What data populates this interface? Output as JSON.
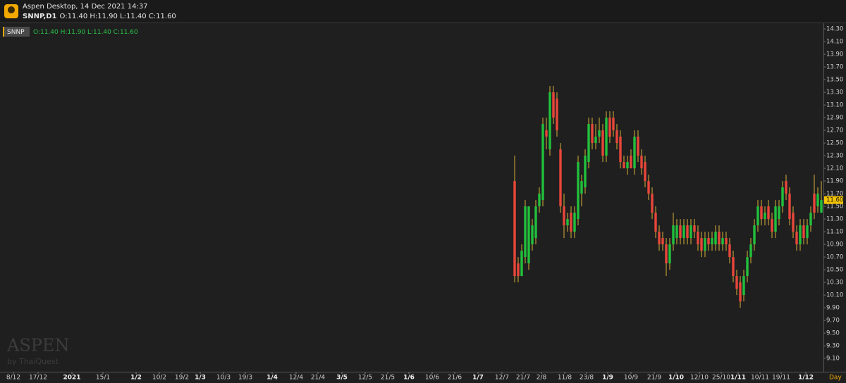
{
  "header": {
    "title": "Aspen Desktop, 14 Dec 2021 14:37",
    "symbol": "SNNP,D1",
    "ohlc": "O:11.40 H:11.90 L:11.40 C:11.60"
  },
  "legend": {
    "symbol": "SNNP",
    "ohlc": "O:11.40 H:11.90 L:11.40 C:11.60"
  },
  "watermark": {
    "brand": "ASPEN",
    "sub": "by ThaiQuest"
  },
  "chart_data": {
    "type": "candlestick",
    "period": "Day",
    "up_color": "#22c03c",
    "down_color": "#e8473a",
    "wick_color": "#d9b23a",
    "last_price": {
      "value": 11.6,
      "label": "11.60"
    },
    "xlim": [
      0,
      233.6
    ],
    "ylim": [
      8.89,
      14.39
    ],
    "xticks": [
      {
        "value": 3.8,
        "label": "8/12"
      },
      {
        "value": 10.8,
        "label": "17/12"
      },
      {
        "value": 20.4,
        "label": "2021"
      },
      {
        "value": 29.2,
        "label": "15/1"
      },
      {
        "value": 38.6,
        "label": "1/2"
      },
      {
        "value": 45.2,
        "label": "10/2"
      },
      {
        "value": 51.6,
        "label": "19/2"
      },
      {
        "value": 56.8,
        "label": "1/3"
      },
      {
        "value": 63.4,
        "label": "10/3"
      },
      {
        "value": 69.6,
        "label": "19/3"
      },
      {
        "value": 77.2,
        "label": "1/4"
      },
      {
        "value": 84,
        "label": "12/4"
      },
      {
        "value": 90.2,
        "label": "21/4"
      },
      {
        "value": 97,
        "label": "3/5"
      },
      {
        "value": 103.6,
        "label": "12/5"
      },
      {
        "value": 110,
        "label": "21/5"
      },
      {
        "value": 116,
        "label": "1/6"
      },
      {
        "value": 122.6,
        "label": "10/6"
      },
      {
        "value": 129,
        "label": "21/6"
      },
      {
        "value": 135.6,
        "label": "1/7"
      },
      {
        "value": 142.4,
        "label": "12/7"
      },
      {
        "value": 148.4,
        "label": "21/7"
      },
      {
        "value": 153.6,
        "label": "2/8"
      },
      {
        "value": 160.2,
        "label": "11/8"
      },
      {
        "value": 166.4,
        "label": "23/8"
      },
      {
        "value": 172.4,
        "label": "1/9"
      },
      {
        "value": 179,
        "label": "10/9"
      },
      {
        "value": 185.6,
        "label": "21/9"
      },
      {
        "value": 191.8,
        "label": "1/10"
      },
      {
        "value": 198.4,
        "label": "12/10"
      },
      {
        "value": 204.6,
        "label": "25/10"
      },
      {
        "value": 209.4,
        "label": "1/11"
      },
      {
        "value": 215.6,
        "label": "10/11"
      },
      {
        "value": 221.6,
        "label": "19/11"
      },
      {
        "value": 228.6,
        "label": "1/12"
      }
    ],
    "yticks": [
      {
        "value": 9.1,
        "label": "9.10"
      },
      {
        "value": 9.3,
        "label": "9.30"
      },
      {
        "value": 9.5,
        "label": "9.50"
      },
      {
        "value": 9.7,
        "label": "9.70"
      },
      {
        "value": 9.9,
        "label": "9.90"
      },
      {
        "value": 10.1,
        "label": "10.10"
      },
      {
        "value": 10.3,
        "label": "10.30"
      },
      {
        "value": 10.5,
        "label": "10.50"
      },
      {
        "value": 10.7,
        "label": "10.70"
      },
      {
        "value": 10.9,
        "label": "10.90"
      },
      {
        "value": 11.1,
        "label": "11.10"
      },
      {
        "value": 11.3,
        "label": "11.30"
      },
      {
        "value": 11.5,
        "label": "11.50"
      },
      {
        "value": 11.7,
        "label": "11.70"
      },
      {
        "value": 11.9,
        "label": "11.90"
      },
      {
        "value": 12.1,
        "label": "12.10"
      },
      {
        "value": 12.3,
        "label": "12.30"
      },
      {
        "value": 12.5,
        "label": "12.50"
      },
      {
        "value": 12.7,
        "label": "12.70"
      },
      {
        "value": 12.9,
        "label": "12.90"
      },
      {
        "value": 13.1,
        "label": "13.10"
      },
      {
        "value": 13.3,
        "label": "13.30"
      },
      {
        "value": 13.5,
        "label": "13.50"
      },
      {
        "value": 13.7,
        "label": "13.70"
      },
      {
        "value": 13.9,
        "label": "13.90"
      },
      {
        "value": 14.1,
        "label": "14.10"
      },
      {
        "value": 14.3,
        "label": "14.30"
      }
    ],
    "x": [
      146,
      147,
      148,
      149,
      150,
      151,
      152,
      153,
      154,
      155,
      156,
      157,
      158,
      159,
      160,
      161,
      162,
      163,
      164,
      165,
      166,
      167,
      168,
      169,
      170,
      171,
      172,
      173,
      174,
      175,
      176,
      177,
      178,
      179,
      180,
      181,
      182,
      183,
      184,
      185,
      186,
      187,
      188,
      189,
      190,
      191,
      192,
      193,
      194,
      195,
      196,
      197,
      198,
      199,
      200,
      201,
      202,
      203,
      204,
      205,
      206,
      207,
      208,
      209,
      210,
      211,
      212,
      213,
      214,
      215,
      216,
      217,
      218,
      219,
      220,
      221,
      222,
      223,
      224,
      225,
      226,
      227,
      228,
      229,
      230,
      231,
      232,
      233
    ],
    "open": [
      11.9,
      10.6,
      10.4,
      10.7,
      10.6,
      10.9,
      11.0,
      11.5,
      11.6,
      12.7,
      12.4,
      13.3,
      13.2,
      12.4,
      11.5,
      11.2,
      11.4,
      11.1,
      11.3,
      11.7,
      11.8,
      12.2,
      12.8,
      12.5,
      12.6,
      12.7,
      12.3,
      12.9,
      12.9,
      12.7,
      12.6,
      12.2,
      12.1,
      12.3,
      12.1,
      12.6,
      12.3,
      12.2,
      11.9,
      11.7,
      11.4,
      11.1,
      11.0,
      10.9,
      10.6,
      10.9,
      11.0,
      11.2,
      11.0,
      11.2,
      11.0,
      11.2,
      11.1,
      11.0,
      10.8,
      11.0,
      10.9,
      10.9,
      11.1,
      10.9,
      11.0,
      10.9,
      10.7,
      10.4,
      10.3,
      10.1,
      10.4,
      10.7,
      10.9,
      11.2,
      11.5,
      11.3,
      11.5,
      11.3,
      11.1,
      11.3,
      11.5,
      11.9,
      11.7,
      11.4,
      11.1,
      10.9,
      11.2,
      11.0,
      11.2,
      11.7,
      11.5,
      11.4
    ],
    "high": [
      12.3,
      10.7,
      10.9,
      11.6,
      11.5,
      11.3,
      11.6,
      11.8,
      12.9,
      12.9,
      13.4,
      13.4,
      13.3,
      12.5,
      11.7,
      11.4,
      11.5,
      11.5,
      12.3,
      12.0,
      12.4,
      12.9,
      12.9,
      12.8,
      12.9,
      12.8,
      13.0,
      13.0,
      13.0,
      12.8,
      12.7,
      12.3,
      12.3,
      12.4,
      12.7,
      12.7,
      12.4,
      12.3,
      12.0,
      11.8,
      11.5,
      11.2,
      11.1,
      11.0,
      11.0,
      11.4,
      11.3,
      11.3,
      11.3,
      11.3,
      11.3,
      11.3,
      11.2,
      11.1,
      11.1,
      11.1,
      11.1,
      11.2,
      11.2,
      11.1,
      11.1,
      11.0,
      10.8,
      10.5,
      10.4,
      10.5,
      10.8,
      11.0,
      11.3,
      11.6,
      11.6,
      11.5,
      11.6,
      11.4,
      11.6,
      11.6,
      11.9,
      12.0,
      11.8,
      11.5,
      11.2,
      11.3,
      11.3,
      11.3,
      11.5,
      12.0,
      11.8,
      11.9
    ],
    "low": [
      10.3,
      10.3,
      10.4,
      10.6,
      10.5,
      10.8,
      10.9,
      11.4,
      11.5,
      12.4,
      12.3,
      12.8,
      12.6,
      11.4,
      11.0,
      11.1,
      11.0,
      11.0,
      11.2,
      11.5,
      11.7,
      12.1,
      12.4,
      12.4,
      12.5,
      12.2,
      12.2,
      12.5,
      12.6,
      12.4,
      12.1,
      12.1,
      12.0,
      12.1,
      12.0,
      12.2,
      12.0,
      11.8,
      11.6,
      11.3,
      11.0,
      10.8,
      10.8,
      10.4,
      10.5,
      10.8,
      10.9,
      10.9,
      10.9,
      10.9,
      10.9,
      11.0,
      10.8,
      10.7,
      10.7,
      10.8,
      10.8,
      10.8,
      10.8,
      10.8,
      10.8,
      10.6,
      10.3,
      10.1,
      9.9,
      10.0,
      10.3,
      10.6,
      10.8,
      11.1,
      11.2,
      11.2,
      11.2,
      11.0,
      11.0,
      11.2,
      11.4,
      11.6,
      11.2,
      11.0,
      10.8,
      10.8,
      10.9,
      10.9,
      11.1,
      11.3,
      11.4,
      11.4
    ],
    "close": [
      10.4,
      10.4,
      10.8,
      11.5,
      11.5,
      11.2,
      11.5,
      11.7,
      12.8,
      12.6,
      13.3,
      12.9,
      12.7,
      11.5,
      11.2,
      11.3,
      11.1,
      11.4,
      12.2,
      11.9,
      12.3,
      12.8,
      12.5,
      12.6,
      12.7,
      12.3,
      12.9,
      12.6,
      12.7,
      12.5,
      12.2,
      12.1,
      12.2,
      12.1,
      12.6,
      12.3,
      12.1,
      11.9,
      11.7,
      11.4,
      11.1,
      10.9,
      10.9,
      10.6,
      10.9,
      11.2,
      11.2,
      11.0,
      11.2,
      11.0,
      11.2,
      11.1,
      10.9,
      10.8,
      11.0,
      10.9,
      11.0,
      11.1,
      10.9,
      11.0,
      10.9,
      10.7,
      10.4,
      10.2,
      10.0,
      10.4,
      10.7,
      10.9,
      11.2,
      11.5,
      11.3,
      11.4,
      11.3,
      11.1,
      11.5,
      11.5,
      11.8,
      11.7,
      11.3,
      11.1,
      10.9,
      11.2,
      11.0,
      11.2,
      11.4,
      11.4,
      11.7,
      11.6
    ]
  }
}
